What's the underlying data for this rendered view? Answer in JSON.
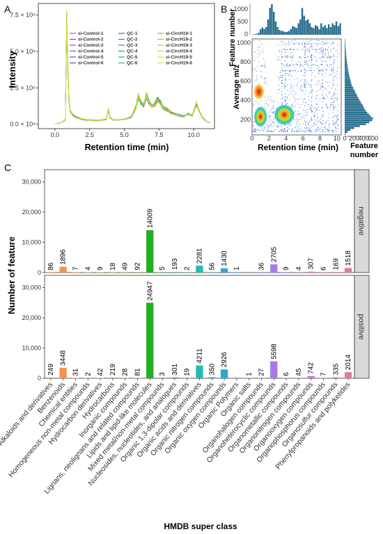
{
  "figure": {
    "panel_a_label": "A",
    "panel_b_label": "B",
    "panel_c_label": "C"
  },
  "chart_data": [
    {
      "type": "line",
      "panel": "A",
      "xlabel": "Retention time  (min)",
      "ylabel": "Intensity",
      "xlim": [
        -1.2,
        11.5
      ],
      "ylim": [
        -300000000.0,
        8300000000.0
      ],
      "x_ticks": [
        0.0,
        2.5,
        5.0,
        7.5,
        10.0
      ],
      "x_tick_labels": [
        "0.0",
        "2.5",
        "5.0",
        "7.5",
        "10.0"
      ],
      "y_ticks": [
        0,
        2500000000.0,
        5000000000.0,
        7500000000.0
      ],
      "y_tick_labels": [
        "0.0 × 10⁹",
        "2.5 × 10⁹",
        "5.0 × 10⁹",
        "7.5 × 10⁹"
      ],
      "legend_columns": [
        [
          "si-Control-1",
          "si-Control-2",
          "si-Control-3",
          "si-Control-4",
          "si-Control-5",
          "si-Control-6"
        ],
        [
          "QC-1",
          "QC-2",
          "QC-3",
          "QC-4",
          "QC-5",
          "QC-6"
        ],
        [
          "si-CircH19-1",
          "si-CircH19-2",
          "si-CircH19-3",
          "si-CircH19-4",
          "si-CircH19-5",
          "si-CircH19-6"
        ]
      ],
      "legend_colors": [
        [
          "#b34fc2",
          "#a23aa8",
          "#8c4bb5",
          "#7252b3",
          "#5a55b0",
          "#4a5aa8"
        ],
        [
          "#3d6aa5",
          "#347aa0",
          "#2e8a98",
          "#2a9a8c",
          "#2eaa7e",
          "#3cb86c"
        ],
        [
          "#5cc460",
          "#7ecd4e",
          "#a0d43e",
          "#bcd832",
          "#d6dc2a",
          "#e8d830"
        ]
      ],
      "trace_x": [
        0.0,
        0.4,
        0.75,
        0.85,
        0.92,
        1.0,
        1.1,
        1.3,
        1.6,
        1.9,
        2.2,
        2.6,
        3.0,
        3.4,
        3.7,
        3.85,
        3.95,
        4.2,
        4.6,
        5.0,
        5.5,
        5.85,
        6.0,
        6.2,
        6.4,
        6.6,
        6.75,
        7.0,
        7.2,
        7.4,
        7.6,
        7.8,
        8.1,
        8.4,
        8.7,
        9.0,
        9.3,
        9.6,
        9.9,
        10.2,
        10.4,
        10.6,
        10.8,
        11.0,
        11.2
      ],
      "trace_y": [
        50000000.0,
        80000000.0,
        300000000.0,
        7000000000.0,
        4200000000.0,
        1800000000.0,
        900000000.0,
        600000000.0,
        450000000.0,
        350000000.0,
        300000000.0,
        280000000.0,
        250000000.0,
        300000000.0,
        350000000.0,
        1000000000.0,
        450000000.0,
        300000000.0,
        300000000.0,
        350000000.0,
        500000000.0,
        1200000000.0,
        1900000000.0,
        1500000000.0,
        1300000000.0,
        2000000000.0,
        1600000000.0,
        1200000000.0,
        1400000000.0,
        1700000000.0,
        1500000000.0,
        1100000000.0,
        1000000000.0,
        800000000.0,
        700000000.0,
        600000000.0,
        550000000.0,
        700000000.0,
        600000000.0,
        1400000000.0,
        900000000.0,
        500000000.0,
        300000000.0,
        150000000.0,
        100000000.0
      ]
    },
    {
      "type": "scatter",
      "panel": "B",
      "xlabel": "Retention time  (min)",
      "ylabel": "Average m/z",
      "top_hist_ylabel": "Feature number",
      "right_hist_xlabel": "Feature number",
      "xlim": [
        0,
        10.5
      ],
      "ylim": [
        50,
        1050
      ],
      "x_ticks": [
        0,
        2,
        4,
        6,
        8,
        10
      ],
      "x_tick_labels": [
        "0",
        "2",
        "4",
        "6",
        "8",
        "10"
      ],
      "y_ticks": [
        200,
        400,
        600,
        800,
        1000
      ],
      "y_tick_labels": [
        "200",
        "400",
        "600",
        "800",
        "1000"
      ],
      "top_hist_ticks": [
        0,
        500,
        1000
      ],
      "top_hist_tick_labels": [
        "0",
        "500",
        "1000"
      ],
      "right_hist_ticks": [
        0,
        200,
        400,
        600
      ],
      "right_hist_tick_labels": [
        "0",
        "200",
        "400",
        "600"
      ],
      "dense_clusters": [
        {
          "x": 1.0,
          "y": 240,
          "level": "high"
        },
        {
          "x": 3.8,
          "y": 260,
          "level": "high"
        },
        {
          "x": 0.8,
          "y": 500,
          "level": "medium"
        }
      ]
    },
    {
      "type": "bar",
      "panel": "C",
      "xlabel": "HMDB super class",
      "ylabel": "Number of feature",
      "ylim": [
        0,
        34000
      ],
      "y_ticks": [
        0,
        10000,
        20000,
        30000
      ],
      "y_tick_labels": [
        "0",
        "10,000",
        "20,000",
        "30,000"
      ],
      "categories": [
        "Alkaloids and derivatives",
        "Benzenoids",
        "Chemical entities",
        "Homogeneous non-metal compounds",
        "Hydrocarbon derivatives",
        "Hydrocarbons",
        "Inorganic compounds",
        "Lignans, neolignans and related compounds",
        "Lipids and lipid-like molecules",
        "Mixed metal/non-metal compounds",
        "Nucleosides, nucleotides, and analogues",
        "Organic 1,3-dipolar compounds",
        "Organic acids and derivatives",
        "Organic nitrogen compounds",
        "Organic oxygen compounds",
        "Organic Polymers",
        "Organic salts",
        "Organohalogen compounds",
        "Organoheterocyclic compounds",
        "Organometallic compounds",
        "Organonitrogen compounds",
        "Organooxygen compounds",
        "Organophosphorus compounds",
        "Organosulfur compounds",
        "Phenylpropanoids and polyketides"
      ],
      "colors": [
        "#e9967a",
        "#f5924e",
        "#d9b87a",
        "#c7c25a",
        "#b3c64a",
        "#a6c23a",
        "#8fc33a",
        "#6cc04a",
        "#22b022",
        "#3ab85a",
        "#40b67a",
        "#2ec0a0",
        "#2bb9b0",
        "#26b5c5",
        "#28a9d4",
        "#4aa0e0",
        "#6a90e8",
        "#8a82ea",
        "#a87ae8",
        "#be72e0",
        "#cf6ed6",
        "#dd6ccb",
        "#e66cc0",
        "#e672b0",
        "#e27a9e"
      ],
      "series": [
        {
          "name": "negative",
          "values": [
            86,
            1896,
            7,
            4,
            9,
            18,
            49,
            92,
            14009,
            5,
            193,
            2,
            2281,
            56,
            1430,
            1,
            null,
            36,
            2705,
            9,
            4,
            307,
            6,
            169,
            1518
          ],
          "labels": [
            "86",
            "1896",
            "7",
            "4",
            "9",
            "18",
            "49",
            "92",
            "14009",
            "5",
            "193",
            "2",
            "2281",
            "56",
            "1430",
            "1",
            "",
            "36",
            "2705",
            "9",
            "4",
            "307",
            "6",
            "169",
            "1518"
          ]
        },
        {
          "name": "positive",
          "values": [
            249,
            3448,
            31,
            2,
            42,
            219,
            28,
            81,
            24947,
            3,
            301,
            19,
            4211,
            350,
            2926,
            null,
            1,
            27,
            5598,
            6,
            45,
            742,
            7,
            335,
            2014
          ],
          "labels": [
            "249",
            "3448",
            "31",
            "2",
            "42",
            "219",
            "28",
            "81",
            "24947",
            "3",
            "301",
            "19",
            "4211",
            "350",
            "2926",
            "",
            "1",
            "27",
            "5598",
            "6",
            "45",
            "742",
            "7",
            "335",
            "2014"
          ]
        }
      ]
    }
  ]
}
